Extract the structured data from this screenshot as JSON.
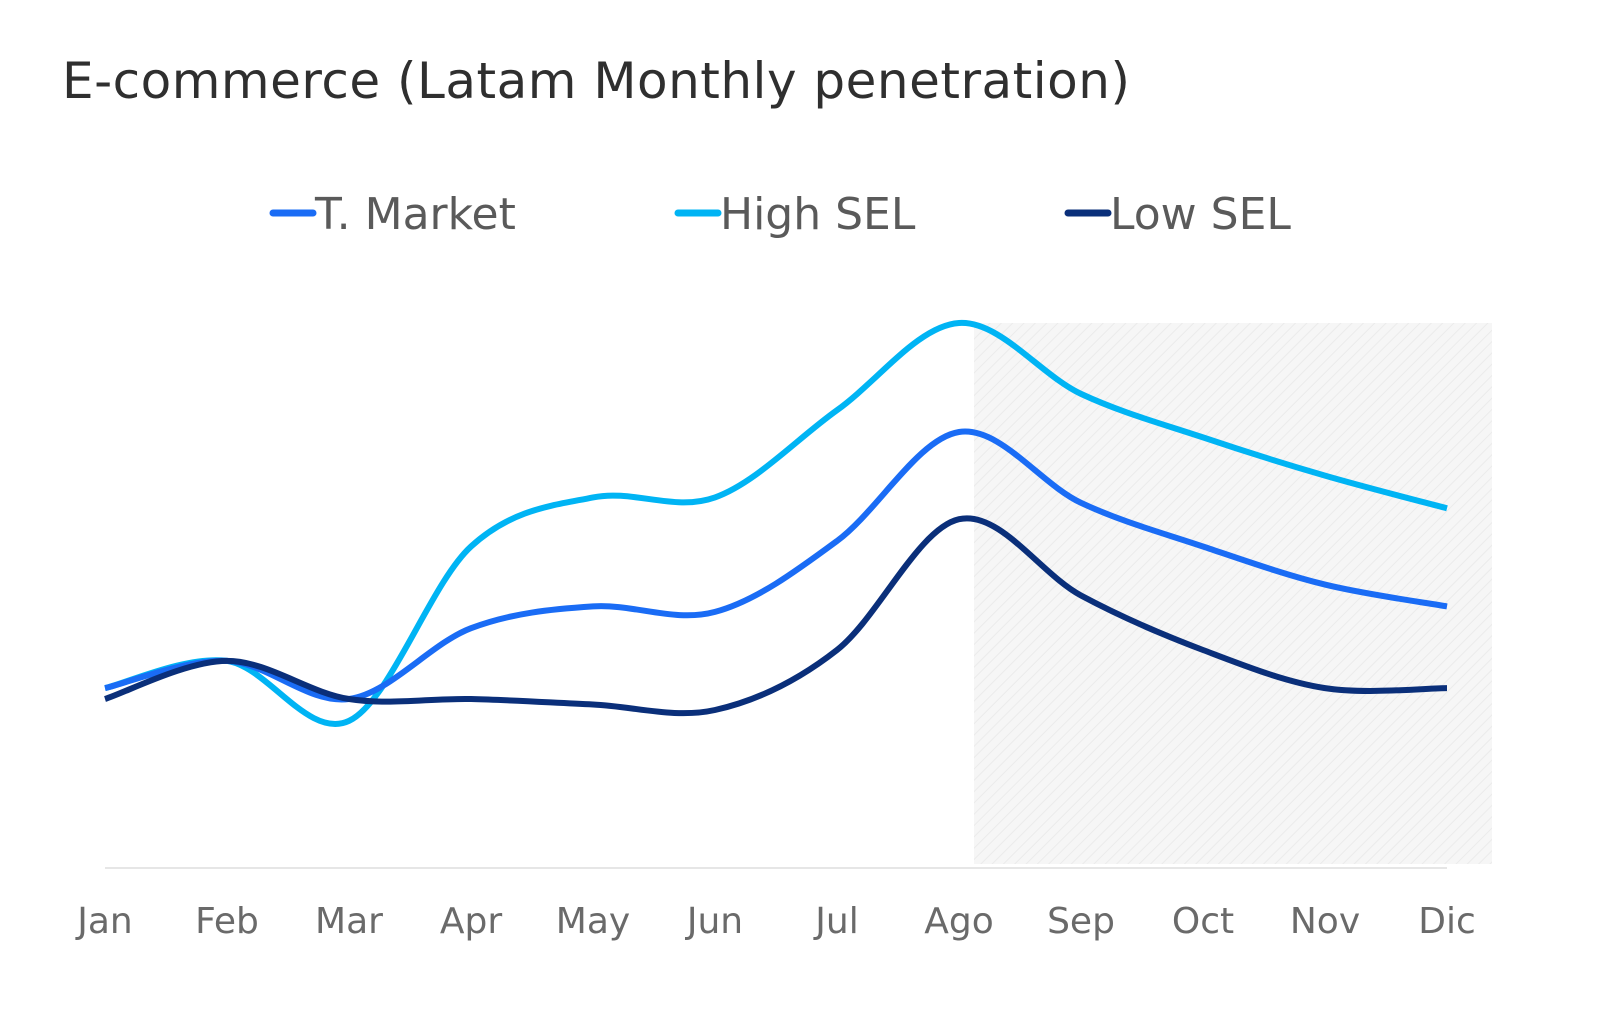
{
  "chart_data": {
    "type": "line",
    "title": "E-commerce (Latam Monthly penetration)",
    "xlabel": "",
    "ylabel": "",
    "y_axis_visible": false,
    "grid": false,
    "legend_position": "top",
    "ylim": [
      0,
      100
    ],
    "categories": [
      "Jan",
      "Feb",
      "Mar",
      "Apr",
      "May",
      "Jun",
      "Jul",
      "Ago",
      "Sep",
      "Oct",
      "Nov",
      "Dic"
    ],
    "highlight_range": [
      "Ago",
      "Dic"
    ],
    "series": [
      {
        "name": "T. Market",
        "color": "#1a6cf5",
        "values": [
          33,
          38,
          31,
          44,
          48,
          47,
          60,
          80,
          67,
          59,
          52,
          48
        ]
      },
      {
        "name": "High SEL",
        "color": "#00b4f4",
        "values": [
          33,
          38,
          27,
          59,
          68,
          68,
          84,
          100,
          87,
          79,
          72,
          66
        ]
      },
      {
        "name": "Low SEL",
        "color": "#0a2f7a",
        "values": [
          31,
          38,
          31,
          31,
          30,
          29,
          40,
          64,
          50,
          40,
          33,
          33
        ]
      }
    ]
  }
}
